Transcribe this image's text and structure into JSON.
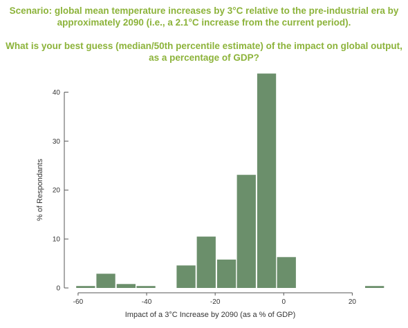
{
  "chart_data": {
    "type": "bar",
    "title": "Scenario: global mean temperature increases by 3°C relative to the pre-industrial era by approximately 2090 (i.e., a 2.1°C increase from the current period).",
    "subtitle": "What is your best guess (median/50th percentile estimate) of the impact on global output, as a percentage of GDP?",
    "xlabel": "Impact of a 3°C Increase by 2090 (as a % of GDP)",
    "ylabel": "% of Respondants",
    "xlim": [
      -62,
      29
    ],
    "ylim": [
      0,
      45
    ],
    "xticks": [
      -60,
      -40,
      -20,
      0,
      20
    ],
    "yticks": [
      0,
      10,
      20,
      30,
      40
    ],
    "bar_width": 5.5,
    "bar_color": "#6b8f6b",
    "title_color": "#8cb33a",
    "bins": [
      {
        "x": -57.8,
        "value": 0.4
      },
      {
        "x": -51.9,
        "value": 2.9
      },
      {
        "x": -46.0,
        "value": 0.8
      },
      {
        "x": -40.2,
        "value": 0.4
      },
      {
        "x": -34.3,
        "value": 0
      },
      {
        "x": -28.5,
        "value": 4.6
      },
      {
        "x": -22.6,
        "value": 10.5
      },
      {
        "x": -16.7,
        "value": 5.8
      },
      {
        "x": -10.9,
        "value": 23.1
      },
      {
        "x": -5.0,
        "value": 43.8
      },
      {
        "x": 0.8,
        "value": 6.3
      },
      {
        "x": 6.7,
        "value": 0
      },
      {
        "x": 12.5,
        "value": 0
      },
      {
        "x": 18.4,
        "value": 0
      },
      {
        "x": 26.5,
        "value": 0.4
      }
    ]
  }
}
